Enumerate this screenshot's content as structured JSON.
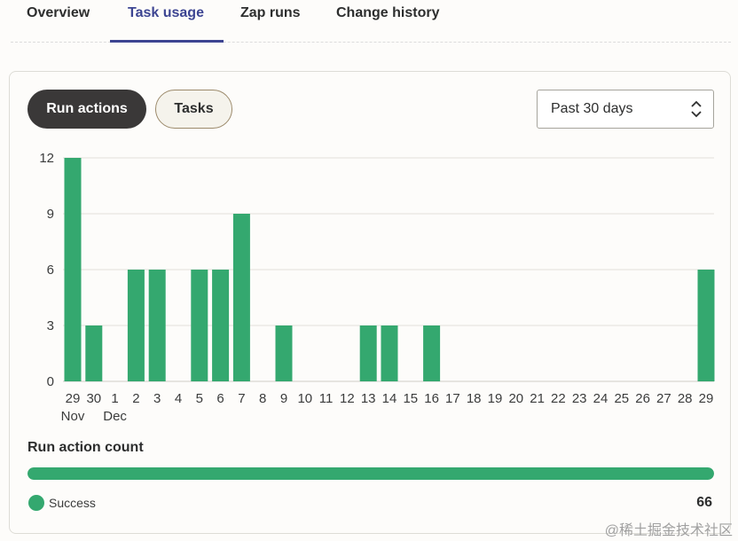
{
  "tabs": [
    {
      "label": "Overview",
      "active": false
    },
    {
      "label": "Task usage",
      "active": true
    },
    {
      "label": "Zap runs",
      "active": false
    },
    {
      "label": "Change history",
      "active": false
    }
  ],
  "toggle": {
    "run_actions": "Run actions",
    "tasks": "Tasks"
  },
  "range_select": {
    "value": "Past 30 days"
  },
  "chart_data": {
    "type": "bar",
    "categories": [
      "29",
      "30",
      "1",
      "2",
      "3",
      "4",
      "5",
      "6",
      "7",
      "8",
      "9",
      "10",
      "11",
      "12",
      "13",
      "14",
      "15",
      "16",
      "17",
      "18",
      "19",
      "20",
      "21",
      "22",
      "23",
      "24",
      "25",
      "26",
      "27",
      "28",
      "29"
    ],
    "month_labels": [
      {
        "index": 0,
        "label": "Nov"
      },
      {
        "index": 2,
        "label": "Dec"
      }
    ],
    "values": [
      12,
      3,
      0,
      6,
      6,
      0,
      6,
      6,
      9,
      0,
      3,
      0,
      0,
      0,
      3,
      3,
      0,
      3,
      0,
      0,
      0,
      0,
      0,
      0,
      0,
      0,
      0,
      0,
      0,
      0,
      6
    ],
    "yticks": [
      0,
      3,
      6,
      9,
      12
    ],
    "ylim": [
      0,
      12
    ],
    "grid": true,
    "bar_color": "#34a86f"
  },
  "count": {
    "title": "Run action count",
    "legend_label": "Success",
    "value": "66",
    "success_fraction": 1.0
  },
  "watermark": "@稀土掘金技术社区",
  "colors": {
    "accent": "#3d4592",
    "success": "#34a86f",
    "dark_pill": "#3a3838"
  }
}
